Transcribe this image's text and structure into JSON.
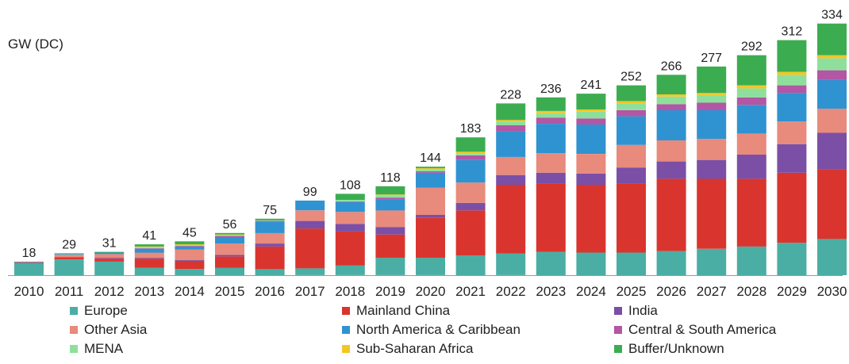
{
  "chart_data": {
    "type": "bar",
    "stacked": true,
    "ylabel": "GW (DC)",
    "grid": false,
    "legend_position": "bottom",
    "categories": [
      "2010",
      "2011",
      "2012",
      "2013",
      "2014",
      "2015",
      "2016",
      "2017",
      "2018",
      "2019",
      "2020",
      "2021",
      "2022",
      "2023",
      "2024",
      "2025",
      "2026",
      "2027",
      "2028",
      "2029",
      "2030"
    ],
    "totals": [
      18,
      29,
      31,
      41,
      45,
      56,
      75,
      99,
      108,
      118,
      144,
      183,
      228,
      236,
      241,
      252,
      266,
      277,
      292,
      312,
      334
    ],
    "series": [
      {
        "name": "Europe",
        "color": "#4aaea4",
        "values": [
          16,
          21,
          18,
          10,
          8,
          10,
          8,
          9,
          13,
          23,
          23,
          26,
          29,
          31,
          30,
          30,
          32,
          35,
          38,
          43,
          48
        ]
      },
      {
        "name": "Mainland China",
        "color": "#d9352e",
        "values": [
          1,
          3,
          4,
          12,
          11,
          15,
          30,
          53,
          45,
          31,
          53,
          60,
          91,
          91,
          90,
          92,
          96,
          93,
          90,
          93,
          93
        ]
      },
      {
        "name": "India",
        "color": "#7b4fa6",
        "values": [
          0,
          0,
          1,
          1,
          1,
          2,
          4,
          10,
          10,
          10,
          4,
          10,
          13,
          14,
          15,
          21,
          23,
          25,
          32,
          38,
          48
        ]
      },
      {
        "name": "Other Asia",
        "color": "#e88a7c",
        "values": [
          0,
          3,
          5,
          7,
          14,
          15,
          14,
          14,
          16,
          22,
          36,
          27,
          24,
          26,
          26,
          30,
          28,
          28,
          28,
          30,
          32
        ]
      },
      {
        "name": "North America & Caribbean",
        "color": "#2f93d1",
        "values": [
          1,
          1,
          2,
          5,
          4,
          8,
          15,
          13,
          13,
          15,
          20,
          30,
          34,
          39,
          39,
          38,
          40,
          38,
          38,
          38,
          38
        ]
      },
      {
        "name": "Central & South America",
        "color": "#b256a5",
        "values": [
          0,
          0,
          0,
          1,
          1,
          2,
          1,
          0,
          1,
          2,
          2,
          6,
          8,
          8,
          8,
          8,
          8,
          10,
          10,
          10,
          13
        ]
      },
      {
        "name": "MENA",
        "color": "#8fdf9c",
        "values": [
          0,
          0,
          0,
          1,
          1,
          1,
          1,
          0,
          2,
          3,
          3,
          3,
          5,
          6,
          9,
          9,
          10,
          10,
          12,
          14,
          16
        ]
      },
      {
        "name": "Sub-Saharan Africa",
        "color": "#f3c622",
        "values": [
          0,
          0,
          0,
          1,
          1,
          1,
          0,
          0,
          0,
          1,
          1,
          2,
          2,
          3,
          3,
          3,
          3,
          3,
          4,
          4,
          4
        ]
      },
      {
        "name": "Buffer/Unknown",
        "color": "#3bad50",
        "values": [
          0,
          1,
          1,
          3,
          4,
          2,
          2,
          0,
          8,
          11,
          2,
          19,
          22,
          18,
          21,
          21,
          26,
          35,
          40,
          42,
          42
        ]
      }
    ]
  }
}
